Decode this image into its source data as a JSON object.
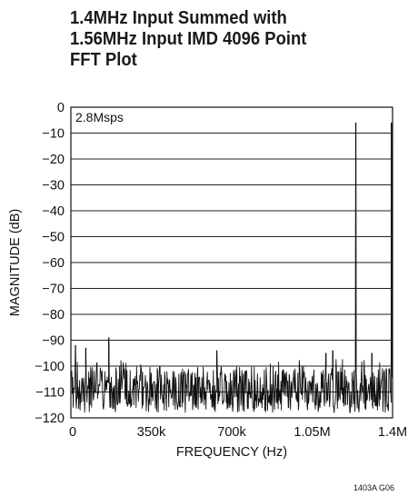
{
  "chart_data": {
    "type": "line",
    "title_lines": [
      "1.4MHz Input Summed with",
      "1.56MHz Input IMD 4096 Point",
      "FFT Plot"
    ],
    "xlabel": "FREQUENCY (Hz)",
    "ylabel": "MAGNITUDE (dB)",
    "xlim": [
      0,
      1400000
    ],
    "ylim": [
      -120,
      0
    ],
    "x_ticks": [
      0,
      350000,
      700000,
      1050000,
      1400000
    ],
    "x_tick_labels": [
      "0",
      "350k",
      "700k",
      "1.05M",
      "1.4M"
    ],
    "y_ticks": [
      0,
      -10,
      -20,
      -30,
      -40,
      -50,
      -60,
      -70,
      -80,
      -90,
      -100,
      -110,
      -120
    ],
    "y_tick_labels": [
      "0",
      "−10",
      "−20",
      "−30",
      "−40",
      "−50",
      "−60",
      "−70",
      "−80",
      "−90",
      "−100",
      "−110",
      "−120"
    ],
    "grid": true,
    "annotation": "2.8Msps",
    "figure_code": "1403A G06",
    "noise_floor_db": [
      -100,
      -118
    ],
    "series": [
      {
        "peaks": [
          {
            "x": 1240000,
            "y": -6
          },
          {
            "x": 1395000,
            "y": -6
          },
          {
            "x": 165000,
            "y": -89
          },
          {
            "x": 20000,
            "y": -92
          },
          {
            "x": 65000,
            "y": -93
          },
          {
            "x": 635000,
            "y": -94
          },
          {
            "x": 1140000,
            "y": -94
          },
          {
            "x": 1110000,
            "y": -95
          },
          {
            "x": 1310000,
            "y": -95
          }
        ]
      }
    ]
  }
}
